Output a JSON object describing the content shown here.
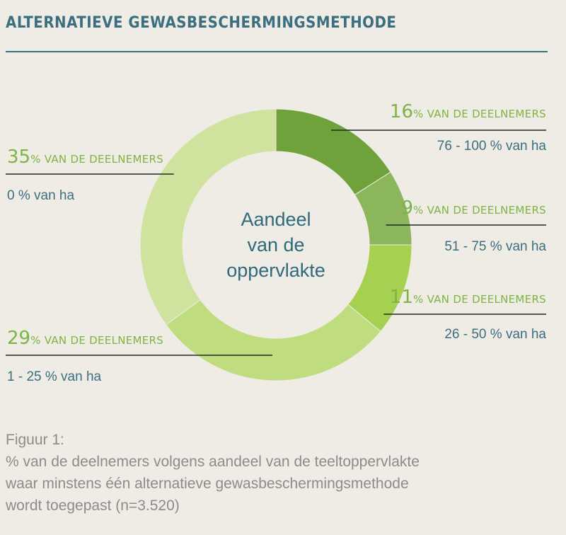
{
  "header": {
    "title": "ALTERNATIEVE GEWASBESCHERMINGSMETHODE"
  },
  "chart_data": {
    "type": "pie",
    "donut": true,
    "center_label": [
      "Aandeel",
      "van de",
      "oppervlakte"
    ],
    "slices": [
      {
        "percent": 16,
        "suffix": "% VAN DE DEELNEMERS",
        "range": "76 - 100 % van ha",
        "color": "#6fa23b"
      },
      {
        "percent": 9,
        "suffix": "% VAN DE DEELNEMERS",
        "range": "51 - 75 % van ha",
        "color": "#8bb65c"
      },
      {
        "percent": 11,
        "suffix": "% VAN DE DEELNEMERS",
        "range": "26 - 50 % van ha",
        "color": "#a6d150"
      },
      {
        "percent": 29,
        "suffix": "% VAN DE DEELNEMERS",
        "range": "1 - 25 % van ha",
        "color": "#bfdd7f"
      },
      {
        "percent": 35,
        "suffix": "% VAN DE DEELNEMERS",
        "range": "0 % van ha",
        "color": "#cfe39e"
      }
    ]
  },
  "caption": {
    "label": "Figuur 1:",
    "lines": [
      "% van de  deelnemers volgens aandeel van de teeltoppervlakte",
      "waar  minstens  één  alternatieve gewasbeschermingsmethode",
      "wordt toegepast (n=3.520)"
    ]
  }
}
